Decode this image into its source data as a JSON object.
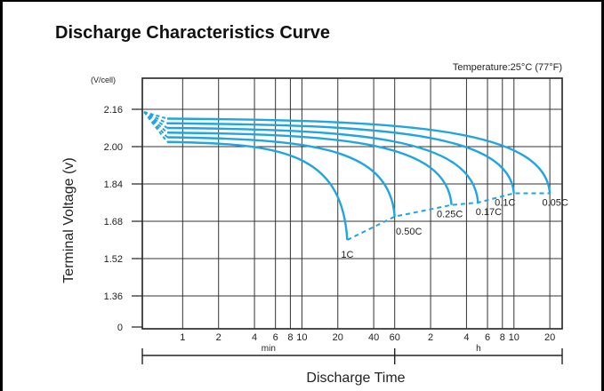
{
  "chart_data": {
    "type": "line",
    "title": "Discharge Characteristics Curve",
    "annotation": "Temperature:25°C (77°F)",
    "ylabel": "Terminal  Voltage  (v)",
    "yunit": "(V/cell)",
    "xlabel": "Discharge  Time",
    "y_ticks": [
      "2.16",
      "2.00",
      "1.84",
      "1.68",
      "1.52",
      "1.36",
      "0"
    ],
    "x_ticks_min": [
      "1",
      "2",
      "4",
      "6",
      "8",
      "10",
      "20",
      "40",
      "60"
    ],
    "x_ticks_h": [
      "2",
      "4",
      "6",
      "8",
      "10",
      "20"
    ],
    "x_unit_min": "min",
    "x_unit_h": "h",
    "grid": true,
    "colors": {
      "curve": "#1fa6e0",
      "axis": "#222222",
      "grid": "#333333"
    },
    "series": [
      {
        "name": "1C",
        "start_voltage": 2.02,
        "end_voltage": 1.6,
        "end_time": "24 min"
      },
      {
        "name": "0.50C",
        "start_voltage": 2.04,
        "end_voltage": 1.7,
        "end_time": "60 min"
      },
      {
        "name": "0.25C",
        "start_voltage": 2.06,
        "end_voltage": 1.75,
        "end_time": "3 h"
      },
      {
        "name": "0.17C",
        "start_voltage": 2.08,
        "end_voltage": 1.76,
        "end_time": "5 h"
      },
      {
        "name": "0.1C",
        "start_voltage": 2.1,
        "end_voltage": 1.8,
        "end_time": "10 h"
      },
      {
        "name": "0.05C",
        "start_voltage": 2.12,
        "end_voltage": 1.8,
        "end_time": "20 h"
      }
    ]
  }
}
